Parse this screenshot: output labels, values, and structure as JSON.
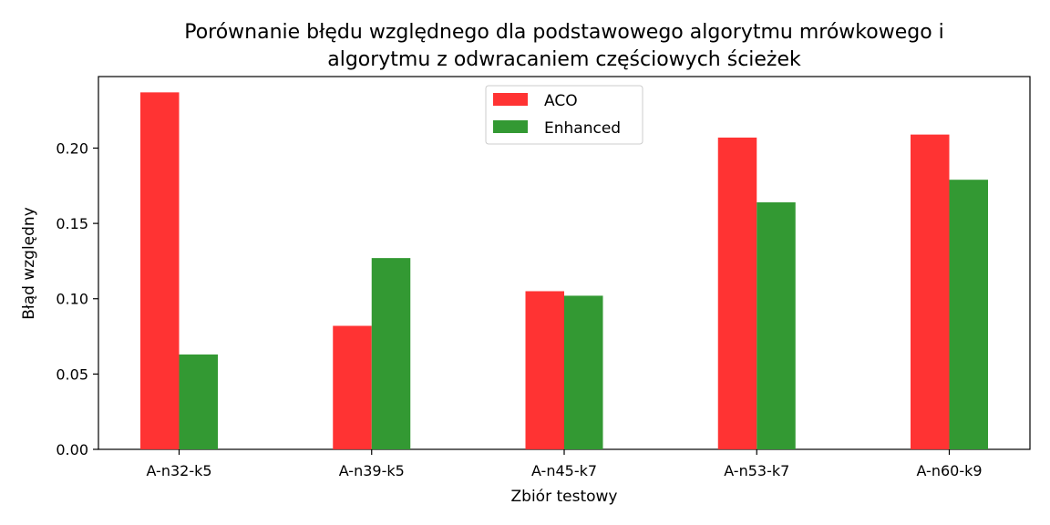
{
  "chart_data": {
    "type": "bar",
    "title": [
      "Porównanie błędu względnego dla podstawowego algorytmu mrówkowego i",
      "algorytmu z odwracaniem częściowych ścieżek"
    ],
    "xlabel": "Zbiór testowy",
    "ylabel": "Błąd względny",
    "categories": [
      "A-n32-k5",
      "A-n39-k5",
      "A-n45-k7",
      "A-n53-k7",
      "A-n60-k9"
    ],
    "series": [
      {
        "name": "ACO",
        "color": "#ff3333",
        "values": [
          0.237,
          0.082,
          0.105,
          0.207,
          0.209
        ]
      },
      {
        "name": "Enhanced",
        "color": "#339933",
        "values": [
          0.063,
          0.127,
          0.102,
          0.164,
          0.179
        ]
      }
    ],
    "ylim": [
      0,
      0.2475
    ],
    "yticks": [
      "0.00",
      "0.05",
      "0.10",
      "0.15",
      "0.20"
    ],
    "legend_position": "upper-center",
    "grid": false
  }
}
